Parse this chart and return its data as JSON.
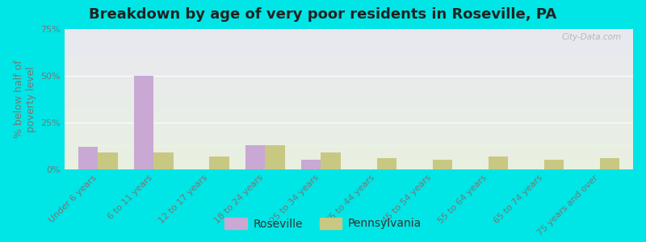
{
  "title": "Breakdown by age of very poor residents in Roseville, PA",
  "ylabel": "% below half of\npoverty level",
  "categories": [
    "Under 6 years",
    "6 to 11 years",
    "12 to 17 years",
    "18 to 24 years",
    "25 to 34 years",
    "35 to 44 years",
    "45 to 54 years",
    "55 to 64 years",
    "65 to 74 years",
    "75 years and over"
  ],
  "roseville": [
    12,
    50,
    0,
    13,
    5,
    0,
    0,
    0,
    0,
    0
  ],
  "pennsylvania": [
    9,
    9,
    7,
    13,
    9,
    6,
    5,
    7,
    5,
    6
  ],
  "roseville_color": "#c9a8d4",
  "pennsylvania_color": "#c8c882",
  "background_outer": "#00e5e5",
  "background_plot_top": "#e8e8f0",
  "background_plot_bottom": "#e8f0e0",
  "ylim": [
    0,
    75
  ],
  "yticks": [
    0,
    25,
    50,
    75
  ],
  "ytick_labels": [
    "0%",
    "25%",
    "50%",
    "75%"
  ],
  "bar_width": 0.35,
  "title_fontsize": 13,
  "axis_label_fontsize": 9,
  "tick_fontsize": 8,
  "legend_fontsize": 10,
  "watermark": "City-Data.com"
}
